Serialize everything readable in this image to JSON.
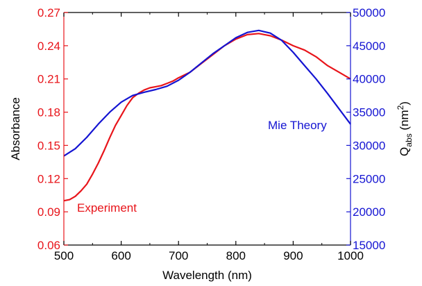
{
  "chart_data": {
    "type": "line",
    "xlabel": "Wavelength (nm)",
    "ylabel_left": "Absorbance",
    "ylabel_right": {
      "base": "Q",
      "subscript": "abs",
      "unit_open": " (nm",
      "superscript": "2",
      "unit_close": ")"
    },
    "xlim": [
      500,
      1000
    ],
    "ylim_left": [
      0.06,
      0.27
    ],
    "ylim_right": [
      15000,
      50000
    ],
    "x_ticks": [
      "500",
      "600",
      "700",
      "800",
      "900",
      "1000"
    ],
    "y_left_ticks": [
      "0.06",
      "0.09",
      "0.12",
      "0.15",
      "0.18",
      "0.21",
      "0.24",
      "0.27"
    ],
    "y_right_ticks": [
      "15000",
      "20000",
      "25000",
      "30000",
      "35000",
      "40000",
      "45000",
      "50000"
    ],
    "grid": false,
    "colors": {
      "experiment": "#e8141a",
      "theory": "#1414d2",
      "axis": "#000000"
    },
    "series": [
      {
        "name": "Experiment",
        "axis": "left",
        "x": [
          500,
          510,
          520,
          530,
          540,
          550,
          560,
          570,
          580,
          590,
          600,
          610,
          620,
          630,
          640,
          650,
          660,
          670,
          680,
          690,
          700,
          720,
          740,
          760,
          780,
          800,
          820,
          840,
          850,
          860,
          880,
          900,
          920,
          940,
          960,
          980,
          1000
        ],
        "y": [
          0.1,
          0.101,
          0.104,
          0.109,
          0.115,
          0.124,
          0.134,
          0.145,
          0.157,
          0.168,
          0.177,
          0.186,
          0.193,
          0.197,
          0.2,
          0.202,
          0.203,
          0.204,
          0.206,
          0.208,
          0.211,
          0.216,
          0.224,
          0.232,
          0.24,
          0.246,
          0.25,
          0.251,
          0.25,
          0.249,
          0.245,
          0.24,
          0.236,
          0.23,
          0.222,
          0.216,
          0.21
        ]
      },
      {
        "name": "Mie Theory",
        "axis": "right",
        "x": [
          500,
          520,
          540,
          560,
          580,
          600,
          620,
          640,
          660,
          680,
          700,
          720,
          740,
          760,
          780,
          800,
          820,
          840,
          860,
          880,
          900,
          920,
          940,
          960,
          980,
          1000
        ],
        "y": [
          28400,
          29500,
          31200,
          33200,
          35000,
          36500,
          37500,
          38000,
          38400,
          38900,
          39800,
          41000,
          42400,
          43800,
          45000,
          46200,
          47000,
          47300,
          46900,
          45800,
          44000,
          42000,
          40000,
          37800,
          35500,
          33200
        ]
      }
    ]
  }
}
